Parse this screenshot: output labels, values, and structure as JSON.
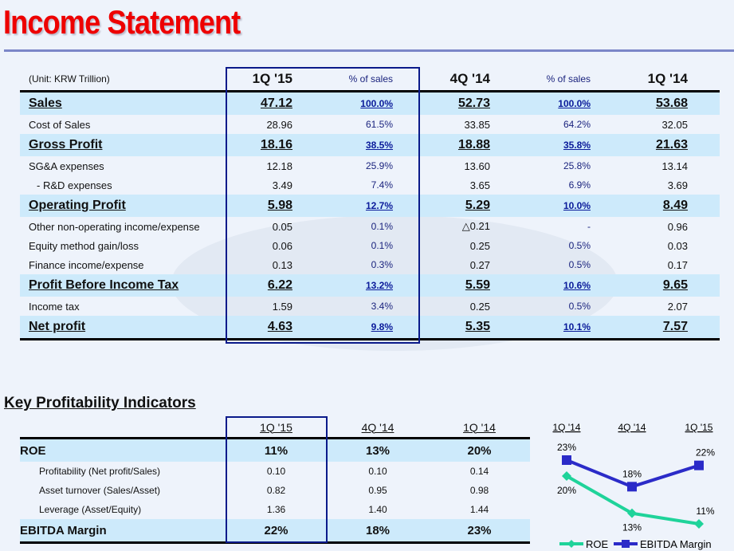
{
  "title": "Income Statement",
  "income_statement": {
    "unit": "(Unit: KRW Trillion)",
    "headers": [
      "1Q '15",
      "% of sales",
      "4Q '14",
      "% of sales",
      "1Q '14"
    ],
    "rows": [
      {
        "label": "Sales",
        "bold": true,
        "values": [
          "47.12",
          "100.0%",
          "52.73",
          "100.0%",
          "53.68"
        ]
      },
      {
        "label": "Cost of Sales",
        "bold": false,
        "values": [
          "28.96",
          "61.5%",
          "33.85",
          "64.2%",
          "32.05"
        ]
      },
      {
        "label": "Gross Profit",
        "bold": true,
        "values": [
          "18.16",
          "38.5%",
          "18.88",
          "35.8%",
          "21.63"
        ]
      },
      {
        "label": "SG&A expenses",
        "bold": false,
        "values": [
          "12.18",
          "25.9%",
          "13.60",
          "25.8%",
          "13.14"
        ]
      },
      {
        "label": "- R&D expenses",
        "bold": false,
        "indent": true,
        "values": [
          "3.49",
          "7.4%",
          "3.65",
          "6.9%",
          "3.69"
        ]
      },
      {
        "label": "Operating Profit",
        "bold": true,
        "values": [
          "5.98",
          "12.7%",
          "5.29",
          "10.0%",
          "8.49"
        ]
      },
      {
        "label": "Other non-operating income/expense",
        "bold": false,
        "values": [
          "0.05",
          "0.1%",
          "△0.21",
          "-",
          "0.96"
        ]
      },
      {
        "label": "Equity method gain/loss",
        "bold": false,
        "values": [
          "0.06",
          "0.1%",
          "0.25",
          "0.5%",
          "0.03"
        ]
      },
      {
        "label": "Finance income/expense",
        "bold": false,
        "values": [
          "0.13",
          "0.3%",
          "0.27",
          "0.5%",
          "0.17"
        ]
      },
      {
        "label": "Profit Before Income Tax",
        "bold": true,
        "values": [
          "6.22",
          "13.2%",
          "5.59",
          "10.6%",
          "9.65"
        ]
      },
      {
        "label": "Income tax",
        "bold": false,
        "values": [
          "1.59",
          "3.4%",
          "0.25",
          "0.5%",
          "2.07"
        ]
      },
      {
        "label": "Net profit",
        "bold": true,
        "values": [
          "4.63",
          "9.8%",
          "5.35",
          "10.1%",
          "7.57"
        ]
      }
    ]
  },
  "kpi": {
    "title": "Key Profitability Indicators",
    "headers": [
      "1Q '15",
      "4Q '14",
      "1Q '14"
    ],
    "rows": [
      {
        "label": "ROE",
        "bold": true,
        "values": [
          "11%",
          "13%",
          "20%"
        ]
      },
      {
        "label": "Profitability (Net profit/Sales)",
        "bold": false,
        "values": [
          "0.10",
          "0.10",
          "0.14"
        ]
      },
      {
        "label": "Asset turnover (Sales/Asset)",
        "bold": false,
        "values": [
          "0.82",
          "0.95",
          "0.98"
        ]
      },
      {
        "label": "Leverage (Asset/Equity)",
        "bold": false,
        "values": [
          "1.36",
          "1.40",
          "1.44"
        ]
      },
      {
        "label": "EBITDA Margin",
        "bold": true,
        "values": [
          "22%",
          "18%",
          "23%"
        ]
      }
    ]
  },
  "chart_data": {
    "type": "line",
    "categories": [
      "1Q '14",
      "4Q '14",
      "1Q '15"
    ],
    "series": [
      {
        "name": "ROE",
        "values": [
          20,
          13,
          11
        ],
        "labels": [
          "20%",
          "13%",
          "11%"
        ],
        "color": "#1fd39a",
        "marker": "diamond"
      },
      {
        "name": "EBITDA Margin",
        "values": [
          23,
          18,
          22
        ],
        "labels": [
          "23%",
          "18%",
          "22%"
        ],
        "color": "#2b2bc8",
        "marker": "square"
      }
    ],
    "legend": "bottom"
  },
  "colors": {
    "title": "#ee0000",
    "highlight_row": "#cdeafb",
    "highlight_box": "#0a1a8a",
    "pct_text": "#1a237e"
  }
}
